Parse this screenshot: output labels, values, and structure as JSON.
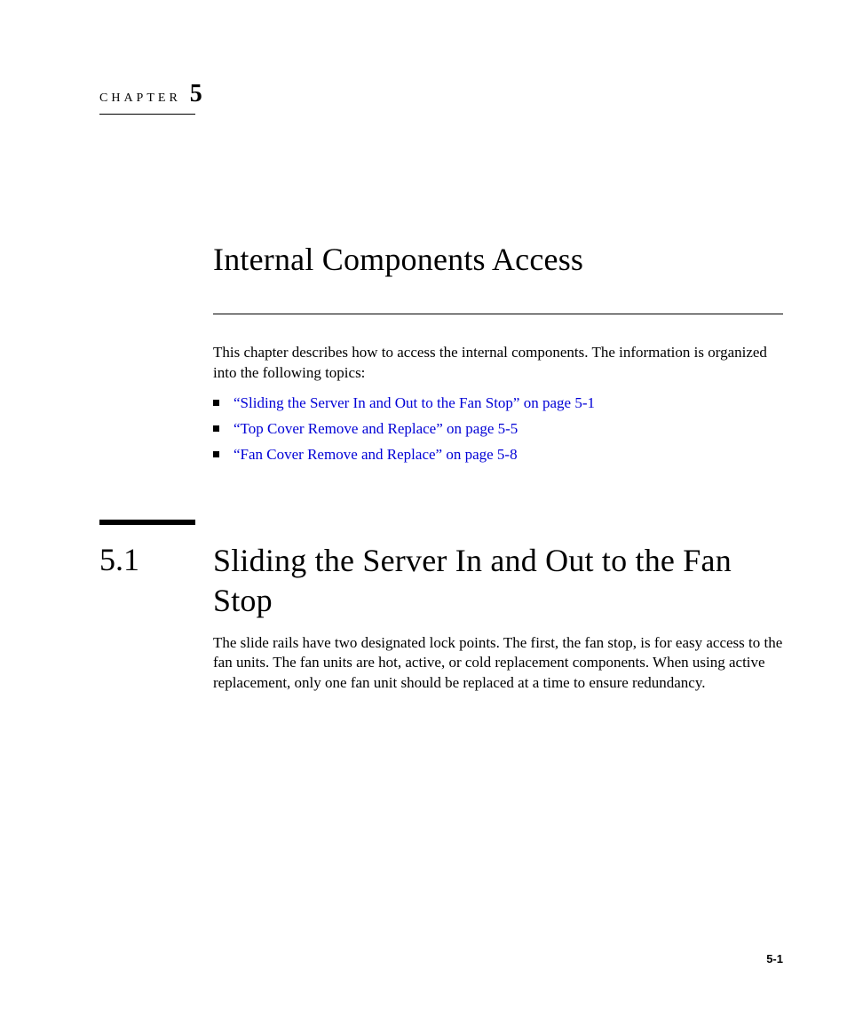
{
  "chapter": {
    "label": "CHAPTER",
    "number": "5"
  },
  "title": "Internal Components Access",
  "intro": "This chapter describes how to access the internal components. The information is organized into the following topics:",
  "topics": [
    "“Sliding the Server In and Out to the Fan Stop” on page 5-1",
    "“Top Cover Remove and Replace” on page 5-5",
    "“Fan Cover Remove and Replace” on page 5-8"
  ],
  "section": {
    "number": "5.1",
    "title": "Sliding the Server In and Out to the Fan Stop",
    "body": "The slide rails have two designated lock points. The first, the fan stop, is for easy access to the fan units. The fan units are hot, active, or cold replacement components. When using active replacement, only one fan unit should be replaced at a time to ensure redundancy."
  },
  "footer": {
    "page": "5-1"
  },
  "colors": {
    "text": "#000000",
    "link": "#0000d6",
    "background": "#ffffff"
  },
  "typography": {
    "body_family": "Palatino",
    "title_fontsize": 36,
    "body_fontsize": 17,
    "chapter_label_fontsize": 14,
    "chapter_number_fontsize": 28,
    "footer_fontsize": 13
  }
}
